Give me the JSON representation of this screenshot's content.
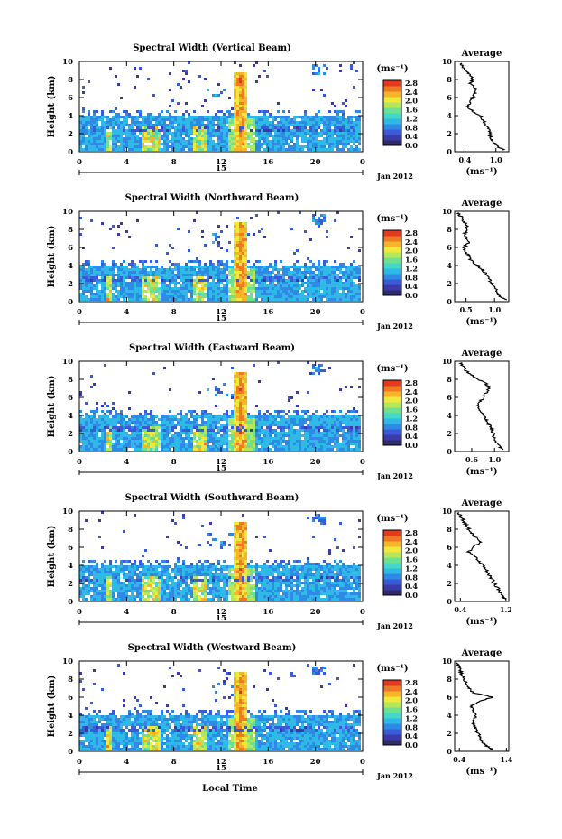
{
  "figure": {
    "xlabel": "Local Time",
    "date_label": "Jan 2012",
    "day_label": "15",
    "ylabel": "Height (km)",
    "colorbar_unit": "(ms⁻¹)",
    "avg_title": "Average",
    "avg_xlabel": "(ms⁻¹)"
  },
  "colorbar": {
    "ticks": [
      "2.8",
      "2.4",
      "2.0",
      "1.6",
      "1.2",
      "0.8",
      "0.4",
      "0.0"
    ],
    "colors": [
      "#2e2a6c",
      "#3a3aa8",
      "#3a5ad8",
      "#2f8ae6",
      "#2fb9e6",
      "#43d8c8",
      "#6fe08f",
      "#b4e85a",
      "#f0e83c",
      "#f6b42a",
      "#f07a24",
      "#e23a1e"
    ]
  },
  "chart_data": [
    {
      "type": "heatmap",
      "title": "Spectral Width (Vertical Beam)",
      "x_ticks": [
        "0",
        "4",
        "8",
        "12",
        "16",
        "20",
        "0"
      ],
      "y_ticks": [
        "0",
        "2",
        "4",
        "6",
        "8",
        "10"
      ],
      "xlim": [
        0,
        24
      ],
      "ylim": [
        0,
        10
      ],
      "avg_profile": {
        "xlim": [
          0.2,
          1.25
        ],
        "x_ticks": [
          "0.4",
          "1.0"
        ],
        "x_tick_vals": [
          0.4,
          1.0
        ],
        "heights": [
          0.2,
          0.5,
          1.0,
          1.5,
          2.0,
          2.5,
          3.0,
          3.5,
          4.0,
          4.5,
          5.0,
          5.5,
          6.0,
          6.5,
          7.0,
          7.5,
          8.0,
          8.5,
          9.0,
          9.5,
          9.9
        ],
        "values": [
          1.15,
          1.05,
          0.95,
          0.9,
          0.88,
          0.85,
          0.8,
          0.75,
          0.7,
          0.55,
          0.45,
          0.5,
          0.55,
          0.6,
          0.62,
          0.5,
          0.55,
          0.5,
          0.42,
          0.35,
          0.3
        ]
      }
    },
    {
      "type": "heatmap",
      "title": "Spectral Width (Northward Beam)",
      "x_ticks": [
        "0",
        "4",
        "8",
        "12",
        "16",
        "20",
        "0"
      ],
      "y_ticks": [
        "0",
        "2",
        "4",
        "6",
        "8",
        "10"
      ],
      "xlim": [
        0,
        24
      ],
      "ylim": [
        0,
        10
      ],
      "avg_profile": {
        "xlim": [
          0.3,
          1.25
        ],
        "x_ticks": [
          "0.5",
          "1.0"
        ],
        "x_tick_vals": [
          0.5,
          1.0
        ],
        "heights": [
          0.2,
          0.5,
          1.0,
          1.5,
          2.0,
          2.5,
          3.0,
          3.5,
          4.0,
          4.5,
          5.0,
          5.5,
          6.0,
          6.5,
          7.0,
          7.5,
          8.0,
          8.5,
          9.0,
          9.5,
          9.9
        ],
        "values": [
          1.2,
          1.1,
          1.05,
          1.0,
          0.95,
          0.9,
          0.85,
          0.8,
          0.7,
          0.6,
          0.55,
          0.5,
          0.45,
          0.55,
          0.5,
          0.48,
          0.52,
          0.5,
          0.45,
          0.4,
          0.35
        ]
      }
    },
    {
      "type": "heatmap",
      "title": "Spectral Width (Eastward Beam)",
      "x_ticks": [
        "0",
        "4",
        "8",
        "12",
        "16",
        "20",
        "0"
      ],
      "y_ticks": [
        "0",
        "2",
        "4",
        "6",
        "8",
        "10"
      ],
      "xlim": [
        0,
        24
      ],
      "ylim": [
        0,
        10
      ],
      "avg_profile": {
        "xlim": [
          0.3,
          1.25
        ],
        "x_ticks": [
          "0.6",
          "1.0"
        ],
        "x_tick_vals": [
          0.6,
          1.0
        ],
        "heights": [
          0.2,
          0.5,
          1.0,
          1.5,
          2.0,
          2.5,
          3.0,
          3.5,
          4.0,
          4.5,
          5.0,
          5.5,
          6.0,
          6.5,
          7.0,
          7.5,
          8.0,
          8.5,
          9.0,
          9.5,
          9.9
        ],
        "values": [
          1.15,
          1.1,
          1.05,
          1.0,
          0.98,
          0.95,
          0.9,
          0.85,
          0.8,
          0.75,
          0.7,
          0.75,
          0.8,
          0.85,
          0.9,
          0.85,
          0.7,
          0.6,
          0.5,
          0.45,
          0.4
        ]
      }
    },
    {
      "type": "heatmap",
      "title": "Spectral Width (Southward Beam)",
      "x_ticks": [
        "0",
        "4",
        "8",
        "12",
        "16",
        "20",
        "0"
      ],
      "y_ticks": [
        "0",
        "2",
        "4",
        "6",
        "8",
        "10"
      ],
      "xlim": [
        0,
        24
      ],
      "ylim": [
        0,
        10
      ],
      "avg_profile": {
        "xlim": [
          0.3,
          1.25
        ],
        "x_ticks": [
          "0.4",
          "1.2"
        ],
        "x_tick_vals": [
          0.4,
          1.2
        ],
        "heights": [
          0.2,
          0.5,
          1.0,
          1.5,
          2.0,
          2.5,
          3.0,
          3.5,
          4.0,
          4.5,
          5.0,
          5.5,
          6.0,
          6.5,
          7.0,
          7.5,
          8.0,
          8.5,
          9.0,
          9.5,
          9.9
        ],
        "values": [
          1.2,
          1.15,
          1.1,
          1.05,
          1.0,
          0.95,
          0.9,
          0.85,
          0.8,
          0.7,
          0.65,
          0.55,
          0.6,
          0.75,
          0.7,
          0.6,
          0.55,
          0.5,
          0.45,
          0.4,
          0.35
        ]
      }
    },
    {
      "type": "heatmap",
      "title": "Spectral Width (Westward Beam)",
      "x_ticks": [
        "0",
        "4",
        "8",
        "12",
        "16",
        "20",
        "0"
      ],
      "y_ticks": [
        "0",
        "2",
        "4",
        "6",
        "8",
        "10"
      ],
      "xlim": [
        0,
        24
      ],
      "ylim": [
        0,
        10
      ],
      "avg_profile": {
        "xlim": [
          0.3,
          1.45
        ],
        "x_ticks": [
          "0.4",
          "1.4"
        ],
        "x_tick_vals": [
          0.4,
          1.4
        ],
        "heights": [
          0.2,
          0.5,
          1.0,
          1.5,
          2.0,
          2.5,
          3.0,
          3.5,
          4.0,
          4.5,
          5.0,
          5.5,
          6.0,
          6.5,
          7.0,
          7.5,
          8.0,
          8.5,
          9.0,
          9.5,
          9.9
        ],
        "values": [
          1.1,
          1.0,
          0.9,
          0.85,
          0.8,
          0.75,
          0.7,
          0.72,
          0.75,
          0.7,
          0.65,
          0.8,
          1.1,
          0.7,
          0.6,
          0.55,
          0.5,
          0.45,
          0.42,
          0.38,
          0.35
        ]
      }
    }
  ]
}
